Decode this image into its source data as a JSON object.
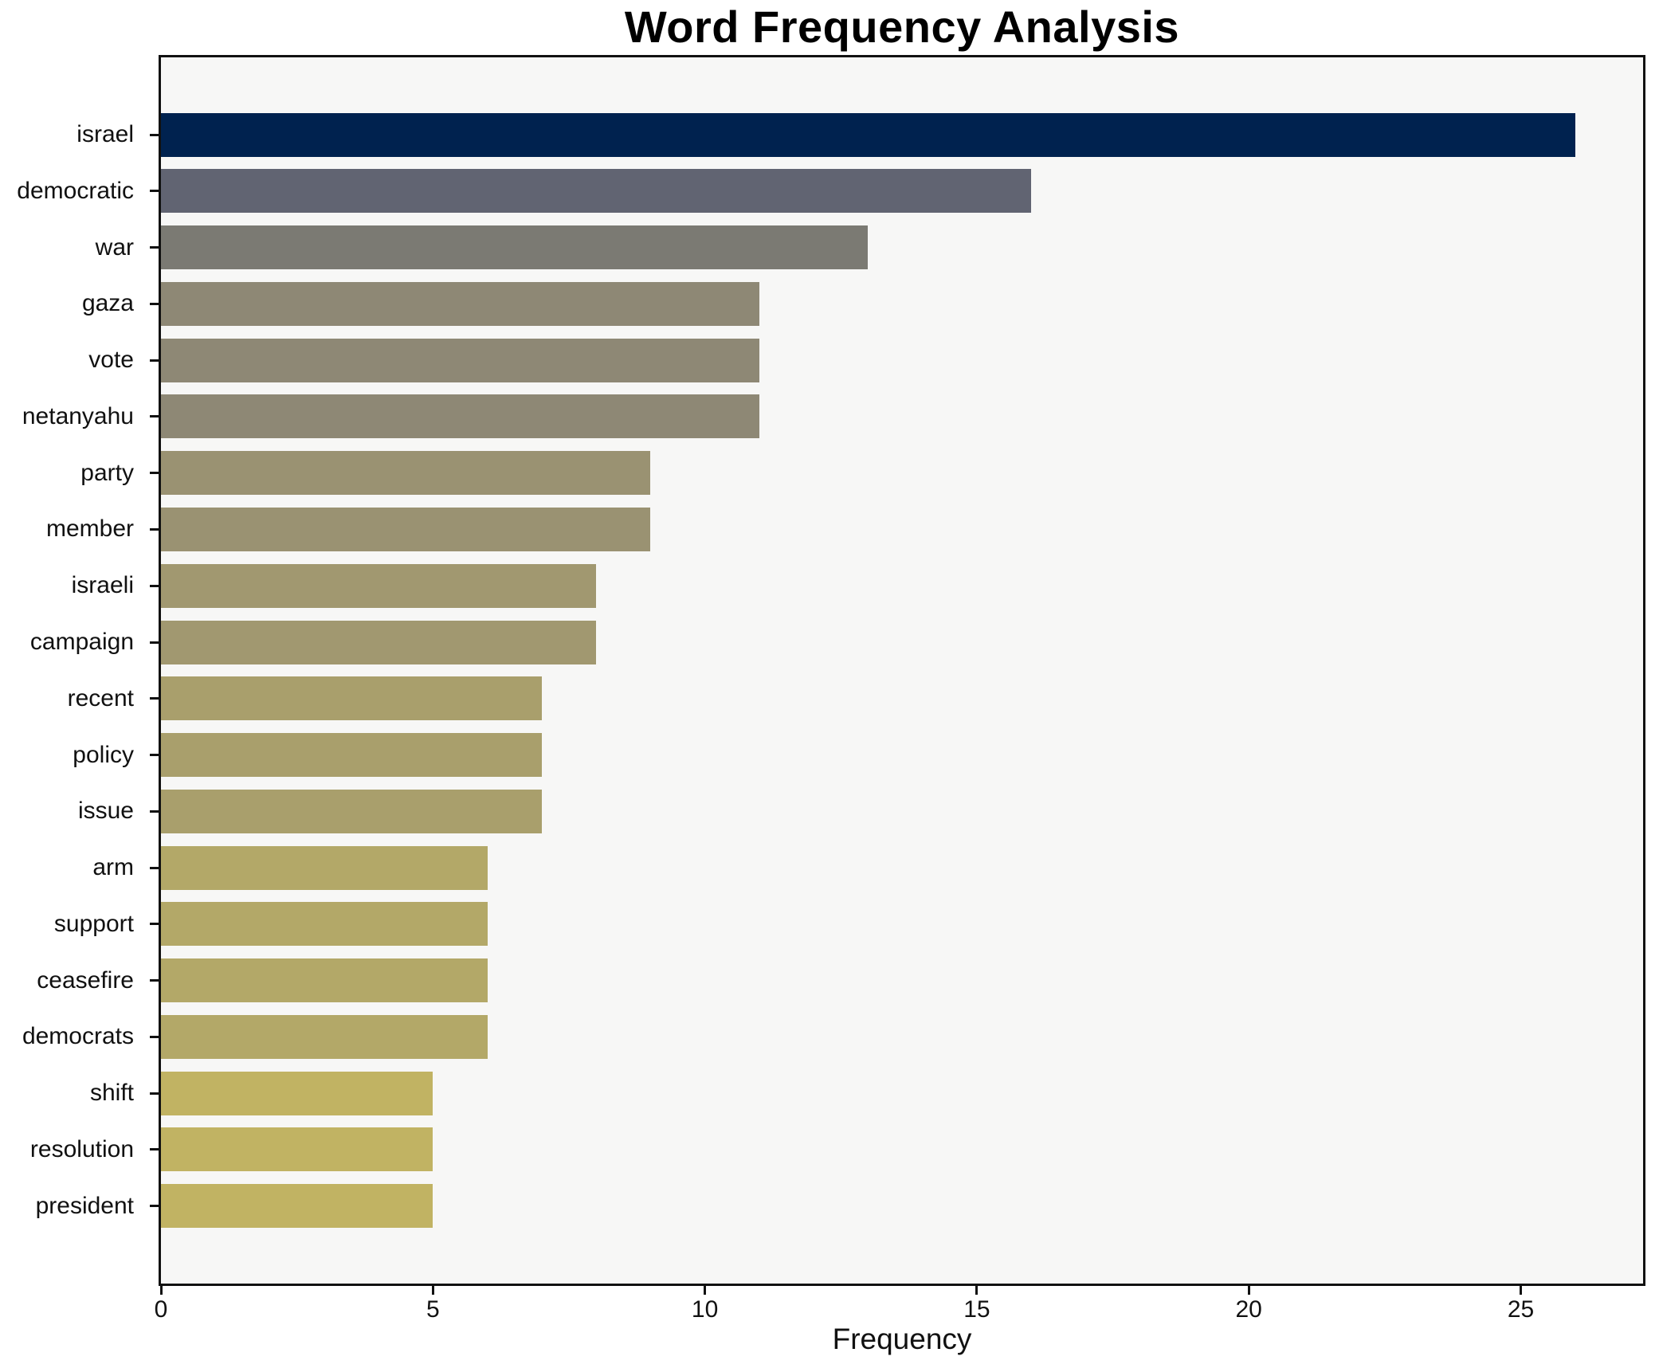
{
  "chart_data": {
    "type": "bar",
    "orientation": "horizontal",
    "title": "Word Frequency Analysis",
    "xlabel": "Frequency",
    "ylabel": "",
    "categories": [
      "israel",
      "democratic",
      "war",
      "gaza",
      "vote",
      "netanyahu",
      "party",
      "member",
      "israeli",
      "campaign",
      "recent",
      "policy",
      "issue",
      "arm",
      "support",
      "ceasefire",
      "democrats",
      "shift",
      "resolution",
      "president"
    ],
    "values": [
      26,
      16,
      13,
      11,
      11,
      11,
      9,
      9,
      8,
      8,
      7,
      7,
      7,
      6,
      6,
      6,
      6,
      5,
      5,
      5
    ],
    "bar_colors": [
      "#00224f",
      "#616472",
      "#7b7a73",
      "#8e8875",
      "#8e8875",
      "#8e8875",
      "#9a9272",
      "#9a9272",
      "#a19870",
      "#a19870",
      "#a99f6c",
      "#a99f6c",
      "#a99f6c",
      "#b3a868",
      "#b3a868",
      "#b3a868",
      "#b3a868",
      "#c1b363",
      "#c1b363",
      "#c1b363"
    ],
    "xlim": [
      0,
      27.25
    ],
    "x_ticks": [
      0,
      5,
      10,
      15,
      20,
      25
    ],
    "grid": false,
    "legend_position": "none",
    "plot_background": "#f7f7f6",
    "figure_background": "#ffffff",
    "spine_color": "#111111"
  }
}
